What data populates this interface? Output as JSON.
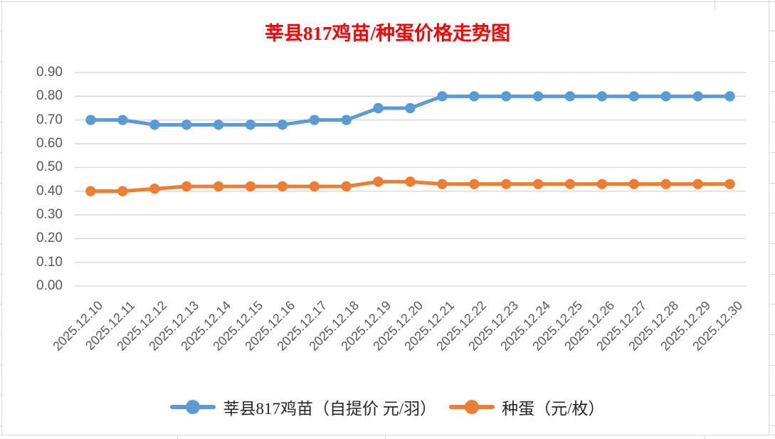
{
  "title": {
    "text": "莘县817鸡苗/种蛋价格走势图",
    "color": "#FF0000"
  },
  "chart_data": {
    "type": "line",
    "title": "莘县817鸡苗/种蛋价格走势图",
    "categories": [
      "2025.12.10",
      "2025.12.11",
      "2025.12.12",
      "2025.12.13",
      "2025.12.14",
      "2025.12.15",
      "2025.12.16",
      "2025.12.17",
      "2025.12.18",
      "2025.12.19",
      "2025.12.20",
      "2025.12.21",
      "2025.12.22",
      "2025.12.23",
      "2025.12.24",
      "2025.12.25",
      "2025.12.26",
      "2025.12.27",
      "2025.12.28",
      "2025.12.29",
      "2025.12.30"
    ],
    "series": [
      {
        "name": "莘县817鸡苗（自提价 元/羽）",
        "color": "#5B9BD5",
        "marker": "circle",
        "values": [
          0.7,
          0.7,
          0.68,
          0.68,
          0.68,
          0.68,
          0.68,
          0.7,
          0.7,
          0.75,
          0.75,
          0.8,
          0.8,
          0.8,
          0.8,
          0.8,
          0.8,
          0.8,
          0.8,
          0.8,
          0.8
        ]
      },
      {
        "name": "种蛋（元/枚）",
        "color": "#ED7D31",
        "marker": "circle",
        "values": [
          0.4,
          0.4,
          0.41,
          0.42,
          0.42,
          0.42,
          0.42,
          0.42,
          0.42,
          0.44,
          0.44,
          0.43,
          0.43,
          0.43,
          0.43,
          0.43,
          0.43,
          0.43,
          0.43,
          0.43,
          0.43
        ]
      }
    ],
    "ylim": [
      0.0,
      0.9
    ],
    "ytick_labels": [
      "0.00",
      "0.10",
      "0.20",
      "0.30",
      "0.40",
      "0.50",
      "0.60",
      "0.70",
      "0.80",
      "0.90"
    ],
    "grid": true,
    "legend_position": "bottom",
    "gridline_color": "#D9D9D9",
    "axis_text_color": "#595959",
    "background_color": "#FFFFFF"
  }
}
